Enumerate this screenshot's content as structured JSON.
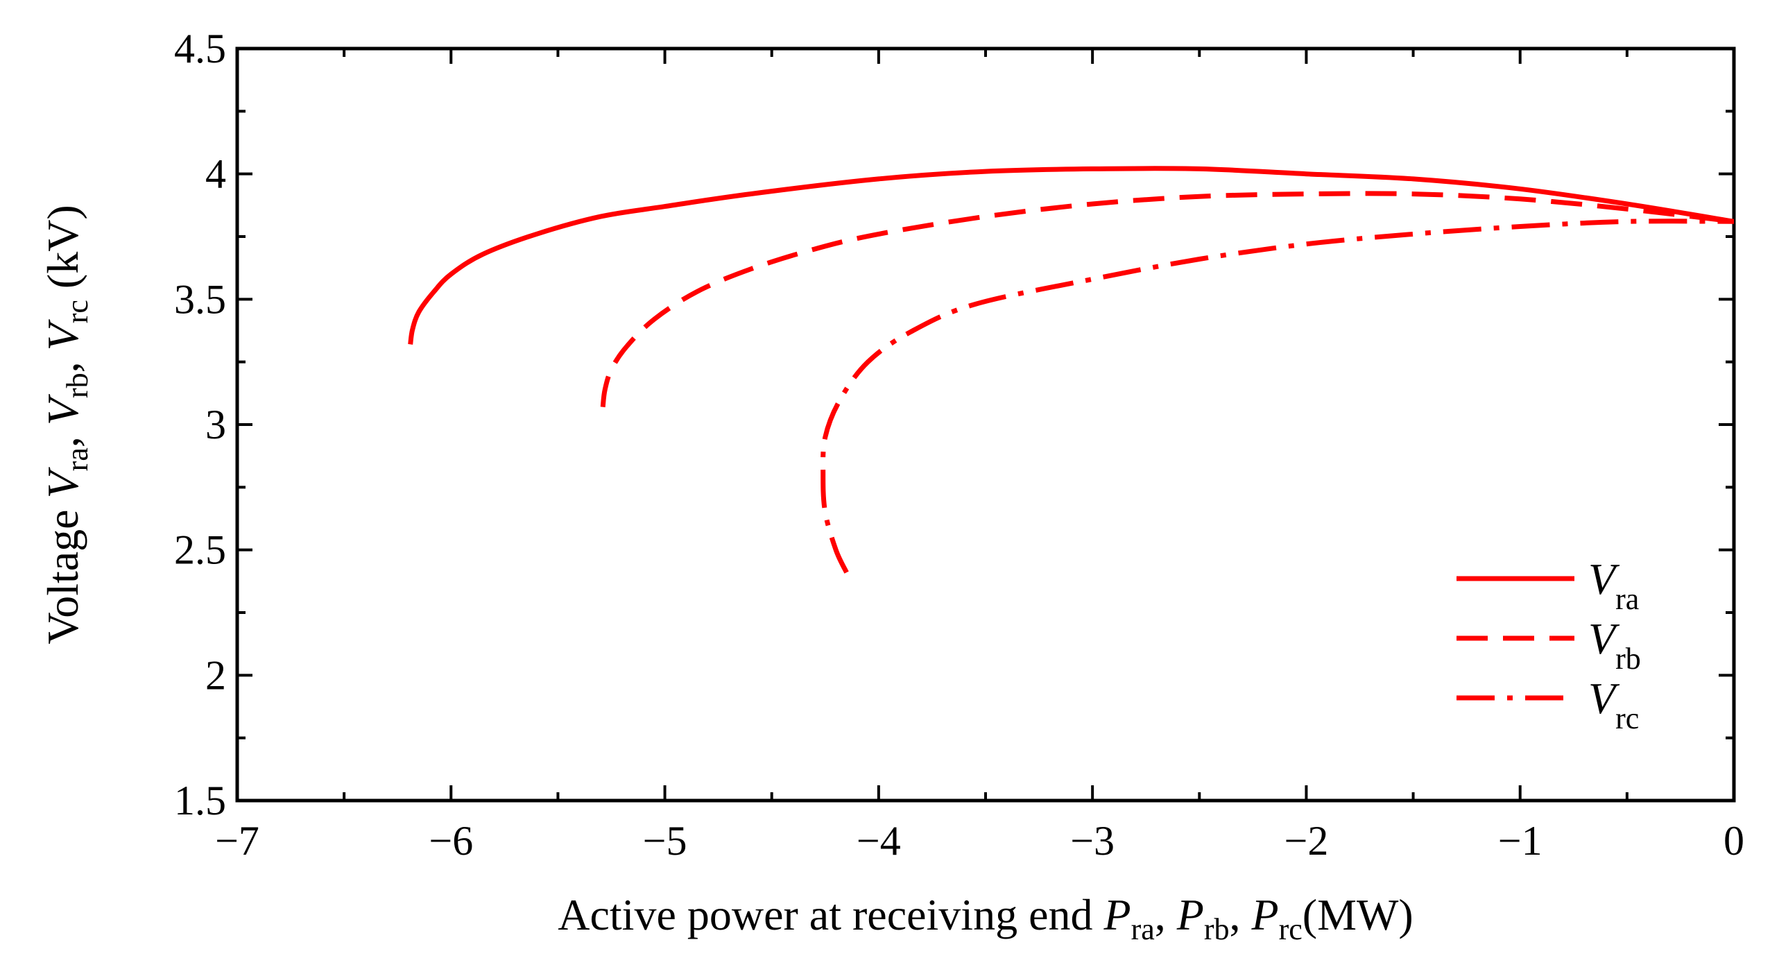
{
  "chart_data": {
    "type": "line",
    "title": "",
    "xlabel": {
      "prefix": "Active power at receiving end",
      "var": "P",
      "subs": [
        "ra",
        "rb",
        "rc"
      ],
      "unit": "(MW)"
    },
    "ylabel": {
      "prefix": "Voltage",
      "var": "V",
      "subs": [
        "ra",
        "rb",
        "rc"
      ],
      "unit": "(kV)"
    },
    "xlim": [
      -7,
      0
    ],
    "ylim": [
      1.5,
      4.5
    ],
    "xticks": [
      {
        "value": -7,
        "label": "−7"
      },
      {
        "value": -6,
        "label": "−6"
      },
      {
        "value": -5,
        "label": "−5"
      },
      {
        "value": -4,
        "label": "−4"
      },
      {
        "value": -3,
        "label": "−3"
      },
      {
        "value": -2,
        "label": "−2"
      },
      {
        "value": -1,
        "label": "−1"
      },
      {
        "value": 0,
        "label": "0"
      }
    ],
    "yticks": [
      {
        "value": 1.5,
        "label": "1.5"
      },
      {
        "value": 2,
        "label": "2"
      },
      {
        "value": 2.5,
        "label": "2.5"
      },
      {
        "value": 3,
        "label": "3"
      },
      {
        "value": 3.5,
        "label": "3.5"
      },
      {
        "value": 4,
        "label": "4"
      },
      {
        "value": 4.5,
        "label": "4.5"
      }
    ],
    "grid": false,
    "legend_position": "bottom-right",
    "series": [
      {
        "name": "V_ra",
        "legend_var": "V",
        "legend_sub": "ra",
        "color": "#ff0000",
        "dash": "solid",
        "points": [
          [
            -6.19,
            3.32
          ],
          [
            -6.18,
            3.38
          ],
          [
            -6.15,
            3.45
          ],
          [
            -6.08,
            3.53
          ],
          [
            -6.0,
            3.6
          ],
          [
            -5.85,
            3.68
          ],
          [
            -5.6,
            3.76
          ],
          [
            -5.3,
            3.83
          ],
          [
            -5.0,
            3.87
          ],
          [
            -4.6,
            3.92
          ],
          [
            -4.0,
            3.98
          ],
          [
            -3.5,
            4.01
          ],
          [
            -3.0,
            4.02
          ],
          [
            -2.5,
            4.02
          ],
          [
            -2.0,
            4.0
          ],
          [
            -1.5,
            3.98
          ],
          [
            -1.0,
            3.94
          ],
          [
            -0.5,
            3.88
          ],
          [
            0.0,
            3.81
          ]
        ]
      },
      {
        "name": "V_rb",
        "legend_var": "V",
        "legend_sub": "rb",
        "color": "#ff0000",
        "dash": "dashed",
        "points": [
          [
            -5.29,
            3.07
          ],
          [
            -5.28,
            3.14
          ],
          [
            -5.25,
            3.22
          ],
          [
            -5.18,
            3.31
          ],
          [
            -5.05,
            3.42
          ],
          [
            -4.85,
            3.53
          ],
          [
            -4.6,
            3.62
          ],
          [
            -4.3,
            3.7
          ],
          [
            -4.0,
            3.76
          ],
          [
            -3.5,
            3.83
          ],
          [
            -3.0,
            3.88
          ],
          [
            -2.5,
            3.91
          ],
          [
            -2.0,
            3.92
          ],
          [
            -1.5,
            3.92
          ],
          [
            -1.0,
            3.9
          ],
          [
            -0.5,
            3.86
          ],
          [
            0.0,
            3.81
          ]
        ]
      },
      {
        "name": "V_rc",
        "legend_var": "V",
        "legend_sub": "rc",
        "color": "#ff0000",
        "dash": "dashdot",
        "points": [
          [
            -4.15,
            2.41
          ],
          [
            -4.2,
            2.5
          ],
          [
            -4.25,
            2.65
          ],
          [
            -4.26,
            2.8
          ],
          [
            -4.25,
            2.95
          ],
          [
            -4.18,
            3.1
          ],
          [
            -4.05,
            3.25
          ],
          [
            -3.85,
            3.37
          ],
          [
            -3.55,
            3.48
          ],
          [
            -3.0,
            3.58
          ],
          [
            -2.5,
            3.66
          ],
          [
            -2.0,
            3.72
          ],
          [
            -1.5,
            3.76
          ],
          [
            -1.0,
            3.79
          ],
          [
            -0.5,
            3.81
          ],
          [
            0.0,
            3.81
          ]
        ]
      }
    ]
  }
}
